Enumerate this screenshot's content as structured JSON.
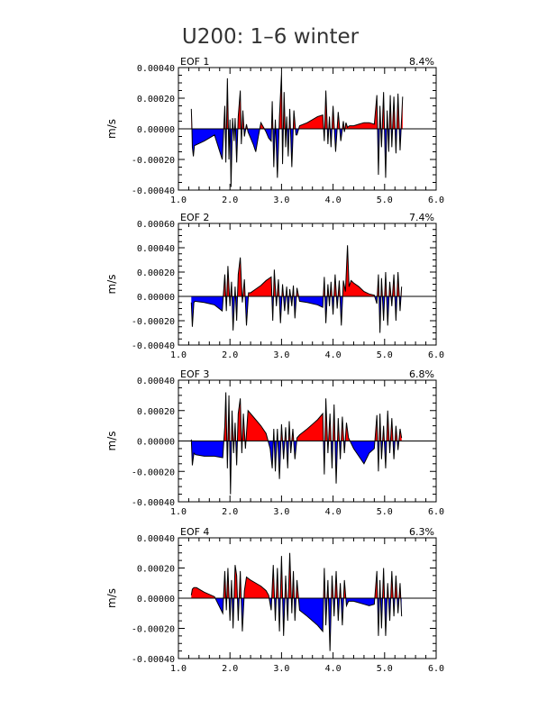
{
  "chart_data": [
    {
      "type": "area",
      "title": "U200: 1–6 winter",
      "panel_label": "EOF 1",
      "variance": "8.4%",
      "ylabel": "m/s",
      "xlim": [
        1.0,
        6.0
      ],
      "ylim": [
        -0.0004,
        0.0004
      ],
      "xticks": [
        "1.0",
        "2.0",
        "3.0",
        "4.0",
        "5.0",
        "6.0"
      ],
      "yticks": [
        "0.00040",
        "0.00020",
        "0.00000",
        "-0.00020",
        "-0.00040"
      ],
      "x": [
        1.25,
        1.26,
        1.27,
        1.29,
        1.31,
        1.5,
        1.7,
        1.85,
        1.9,
        1.92,
        1.95,
        1.98,
        2.0,
        2.02,
        2.05,
        2.08,
        2.1,
        2.13,
        2.16,
        2.2,
        2.22,
        2.25,
        2.28,
        2.32,
        2.35,
        2.4,
        2.45,
        2.5,
        2.55,
        2.6,
        2.65,
        2.7,
        2.75,
        2.8,
        2.82,
        2.85,
        2.88,
        2.92,
        2.96,
        3.0,
        3.02,
        3.05,
        3.08,
        3.1,
        3.13,
        3.16,
        3.2,
        3.24,
        3.28,
        3.3,
        3.35,
        3.5,
        3.7,
        3.8,
        3.83,
        3.86,
        3.9,
        3.93,
        3.96,
        4.0,
        4.05,
        4.1,
        4.15,
        4.2,
        4.22,
        4.25,
        4.28,
        4.32,
        4.35,
        4.4,
        4.5,
        4.6,
        4.7,
        4.8,
        4.85,
        4.88,
        4.91,
        4.94,
        4.98,
        5.02,
        5.05,
        5.08,
        5.11,
        5.14,
        5.18,
        5.22,
        5.26,
        5.3,
        5.35
      ],
      "values": [
        0.00013,
        3e-05,
        -0.00012,
        -0.00018,
        -0.00011,
        -8e-05,
        -4e-05,
        -0.0002,
        0.00015,
        -0.00022,
        0.00033,
        -0.0002,
        6e-05,
        -0.00038,
        7e-05,
        -8e-05,
        7e-05,
        -0.00022,
        8e-05,
        0.00025,
        -0.0001,
        0.00012,
        -5e-05,
        3e-05,
        -2e-05,
        -6e-05,
        -0.0001,
        -0.00015,
        -5e-05,
        4e-05,
        1e-05,
        -2e-05,
        -6e-05,
        -8e-05,
        0.00018,
        -0.00025,
        6e-05,
        -0.00032,
        8e-05,
        0.00036,
        -0.00023,
        0.00024,
        -0.00012,
        8e-05,
        -0.00018,
        0.00013,
        -0.00025,
        0.00012,
        -4e-05,
        -4e-05,
        2e-05,
        4e-05,
        8e-05,
        9e-05,
        -8e-05,
        0.00025,
        -0.0001,
        8e-05,
        -0.00012,
        0.00015,
        -0.00015,
        0.00011,
        -8e-05,
        5e-05,
        -2e-05,
        4e-05,
        1e-05,
        2e-05,
        2e-05,
        2e-05,
        3e-05,
        4e-05,
        4e-05,
        3e-05,
        0.00022,
        -0.0003,
        0.00015,
        -0.00012,
        0.00024,
        -0.00032,
        0.00012,
        -0.00015,
        0.00022,
        -0.00012,
        0.00021,
        -0.00016,
        0.00023,
        -0.00014,
        0.00021
      ]
    },
    {
      "type": "area",
      "panel_label": "EOF 2",
      "variance": "7.4%",
      "ylabel": "m/s",
      "xlim": [
        1.0,
        6.0
      ],
      "ylim": [
        -0.0004,
        0.0006
      ],
      "xticks": [
        "1.0",
        "2.0",
        "3.0",
        "4.0",
        "5.0",
        "6.0"
      ],
      "yticks": [
        "0.00060",
        "0.00040",
        "0.00020",
        "0.00000",
        "-0.00020",
        "-0.00040"
      ],
      "x": [
        1.25,
        1.27,
        1.3,
        1.32,
        1.5,
        1.7,
        1.85,
        1.9,
        1.93,
        1.96,
        2.0,
        2.03,
        2.06,
        2.1,
        2.13,
        2.16,
        2.2,
        2.24,
        2.28,
        2.32,
        2.36,
        2.4,
        2.5,
        2.6,
        2.7,
        2.8,
        2.83,
        2.86,
        2.9,
        2.94,
        2.98,
        3.02,
        3.06,
        3.1,
        3.13,
        3.16,
        3.2,
        3.23,
        3.26,
        3.3,
        3.35,
        3.5,
        3.7,
        3.8,
        3.83,
        3.86,
        3.9,
        3.93,
        3.96,
        4.0,
        4.04,
        4.08,
        4.12,
        4.16,
        4.2,
        4.24,
        4.28,
        4.31,
        4.35,
        4.4,
        4.5,
        4.6,
        4.7,
        4.8,
        4.85,
        4.88,
        4.91,
        4.94,
        4.98,
        5.02,
        5.06,
        5.1,
        5.14,
        5.18,
        5.22,
        5.26,
        5.3,
        5.33
      ],
      "values": [
        -5e-05,
        -0.00025,
        -5e-05,
        -4e-05,
        -5e-05,
        -7e-05,
        -0.00012,
        0.00018,
        -0.00012,
        0.00025,
        -8e-05,
        0.00012,
        -0.00028,
        8e-05,
        -0.0002,
        0.00018,
        0.00032,
        -5e-05,
        0.00014,
        -0.00024,
        3e-05,
        3e-05,
        6e-05,
        9e-05,
        0.00013,
        0.00016,
        -0.0002,
        0.00022,
        -8e-05,
        0.00014,
        -0.00022,
        0.0001,
        -0.00012,
        8e-05,
        -0.00015,
        6e-05,
        -8e-05,
        9e-05,
        -0.00018,
        7e-05,
        -4e-05,
        -5e-05,
        -7e-05,
        -9e-05,
        0.00016,
        -0.00022,
        0.0001,
        -8e-05,
        0.00012,
        -0.00015,
        0.00018,
        -0.0001,
        0.00013,
        -0.00024,
        0.00013,
        4e-05,
        0.00042,
        8e-05,
        0.00013,
        0.00011,
        8e-05,
        4e-05,
        2e-05,
        1e-05,
        -6e-05,
        0.00018,
        -0.0003,
        0.00015,
        -0.0002,
        0.0002,
        -0.00024,
        0.00012,
        -8e-05,
        0.00018,
        -0.0002,
        0.0002,
        -0.00012,
        8e-05
      ]
    },
    {
      "type": "area",
      "panel_label": "EOF 3",
      "variance": "6.8%",
      "ylabel": "m/s",
      "xlim": [
        1.0,
        6.0
      ],
      "ylim": [
        -0.0004,
        0.0004
      ],
      "xticks": [
        "1.0",
        "2.0",
        "3.0",
        "4.0",
        "5.0",
        "6.0"
      ],
      "yticks": [
        "0.00040",
        "0.00020",
        "0.00000",
        "-0.00020",
        "-0.00040"
      ],
      "x": [
        1.25,
        1.27,
        1.3,
        1.33,
        1.5,
        1.7,
        1.86,
        1.9,
        1.92,
        1.95,
        1.98,
        2.01,
        2.04,
        2.07,
        2.1,
        2.13,
        2.16,
        2.2,
        2.23,
        2.26,
        2.3,
        2.35,
        2.4,
        2.5,
        2.6,
        2.7,
        2.78,
        2.82,
        2.85,
        2.88,
        2.92,
        2.96,
        3.0,
        3.04,
        3.08,
        3.12,
        3.15,
        3.18,
        3.22,
        3.26,
        3.3,
        3.35,
        3.5,
        3.6,
        3.7,
        3.8,
        3.83,
        3.86,
        3.9,
        3.94,
        3.98,
        4.02,
        4.06,
        4.1,
        4.14,
        4.18,
        4.22,
        4.26,
        4.3,
        4.4,
        4.5,
        4.6,
        4.7,
        4.8,
        4.85,
        4.88,
        4.91,
        4.94,
        4.98,
        5.02,
        5.06,
        5.1,
        5.14,
        5.18,
        5.22,
        5.26,
        5.3,
        5.33
      ],
      "values": [
        1e-05,
        -0.00016,
        -8e-05,
        -9e-05,
        -0.0001,
        -0.0001,
        -0.00011,
        0.0001,
        0.00032,
        -0.00018,
        0.0003,
        -0.00035,
        0.0002,
        -8e-05,
        0.00012,
        -0.00016,
        0.00018,
        0.00028,
        -8e-05,
        0.00018,
        -5e-05,
        0.0002,
        0.00018,
        0.00014,
        0.0001,
        5e-05,
        -5e-05,
        -0.00018,
        8e-05,
        -0.0002,
        8e-05,
        -0.00025,
        0.00011,
        -0.00012,
        9e-05,
        -0.00018,
        0.00013,
        -8e-05,
        8e-05,
        -0.00012,
        2e-05,
        4e-05,
        8e-05,
        0.00011,
        0.00014,
        0.00018,
        -0.00022,
        0.00028,
        -8e-05,
        0.00018,
        -0.00018,
        0.00024,
        -0.00028,
        0.00015,
        -0.00012,
        0.00016,
        -8e-05,
        0.00012,
        2e-05,
        -5e-05,
        -0.0001,
        -0.00015,
        -8e-05,
        -5e-05,
        0.00017,
        -0.0002,
        0.00018,
        -0.00012,
        0.0001,
        -0.00018,
        0.0002,
        -8e-05,
        0.00015,
        -0.00012,
        0.0001,
        -6e-05,
        8e-05,
        2e-05
      ]
    },
    {
      "type": "area",
      "panel_label": "EOF 4",
      "variance": "6.3%",
      "ylabel": "m/s",
      "xlim": [
        1.0,
        6.0
      ],
      "ylim": [
        -0.0004,
        0.0004
      ],
      "xticks": [
        "1.0",
        "2.0",
        "3.0",
        "4.0",
        "5.0",
        "6.0"
      ],
      "yticks": [
        "0.00040",
        "0.00020",
        "0.00000",
        "-0.00020",
        "-0.00040"
      ],
      "x": [
        1.25,
        1.27,
        1.3,
        1.35,
        1.5,
        1.7,
        1.86,
        1.9,
        1.93,
        1.96,
        2.0,
        2.03,
        2.06,
        2.1,
        2.13,
        2.16,
        2.2,
        2.24,
        2.28,
        2.32,
        2.36,
        2.4,
        2.5,
        2.6,
        2.7,
        2.75,
        2.8,
        2.84,
        2.88,
        2.92,
        2.96,
        3.0,
        3.04,
        3.08,
        3.12,
        3.16,
        3.2,
        3.23,
        3.26,
        3.3,
        3.35,
        3.5,
        3.6,
        3.7,
        3.8,
        3.83,
        3.86,
        3.9,
        3.94,
        3.98,
        4.02,
        4.06,
        4.1,
        4.14,
        4.18,
        4.22,
        4.26,
        4.3,
        4.4,
        4.5,
        4.6,
        4.7,
        4.8,
        4.85,
        4.88,
        4.91,
        4.94,
        4.98,
        5.02,
        5.06,
        5.1,
        5.14,
        5.18,
        5.22,
        5.26,
        5.3,
        5.33
      ],
      "values": [
        2e-05,
        6e-05,
        7e-05,
        7e-05,
        4e-05,
        1e-05,
        -0.0001,
        0.00018,
        -8e-05,
        0.0002,
        -0.00015,
        0.00012,
        -0.0002,
        0.00022,
        0.00015,
        -0.00015,
        0.00018,
        -0.00022,
        5e-05,
        0.00014,
        0.00013,
        0.00012,
        0.0001,
        8e-05,
        5e-05,
        2e-05,
        -8e-05,
        0.00022,
        -0.00015,
        0.0002,
        -0.00022,
        0.00028,
        -0.00025,
        0.00015,
        -0.00015,
        0.0003,
        -0.0001,
        0.00018,
        -0.00015,
        0.00012,
        -8e-05,
        -0.00012,
        -0.00015,
        -0.00018,
        -0.00022,
        0.0002,
        -0.00018,
        0.00012,
        -0.00035,
        0.00015,
        -0.00012,
        0.00018,
        -0.00015,
        0.0001,
        -0.00018,
        0.00012,
        -5e-05,
        -2e-05,
        -2e-05,
        -3e-05,
        -4e-05,
        -5e-05,
        -4e-05,
        0.00018,
        -0.00025,
        0.00012,
        -0.0002,
        0.0002,
        -0.00025,
        0.0001,
        -0.00015,
        0.00018,
        -0.00012,
        0.00015,
        -0.0001,
        0.0001,
        -0.00012
      ]
    }
  ],
  "colors": {
    "positive": "#ff0000",
    "negative": "#0000ff",
    "line": "#000000",
    "title": "#333333"
  }
}
